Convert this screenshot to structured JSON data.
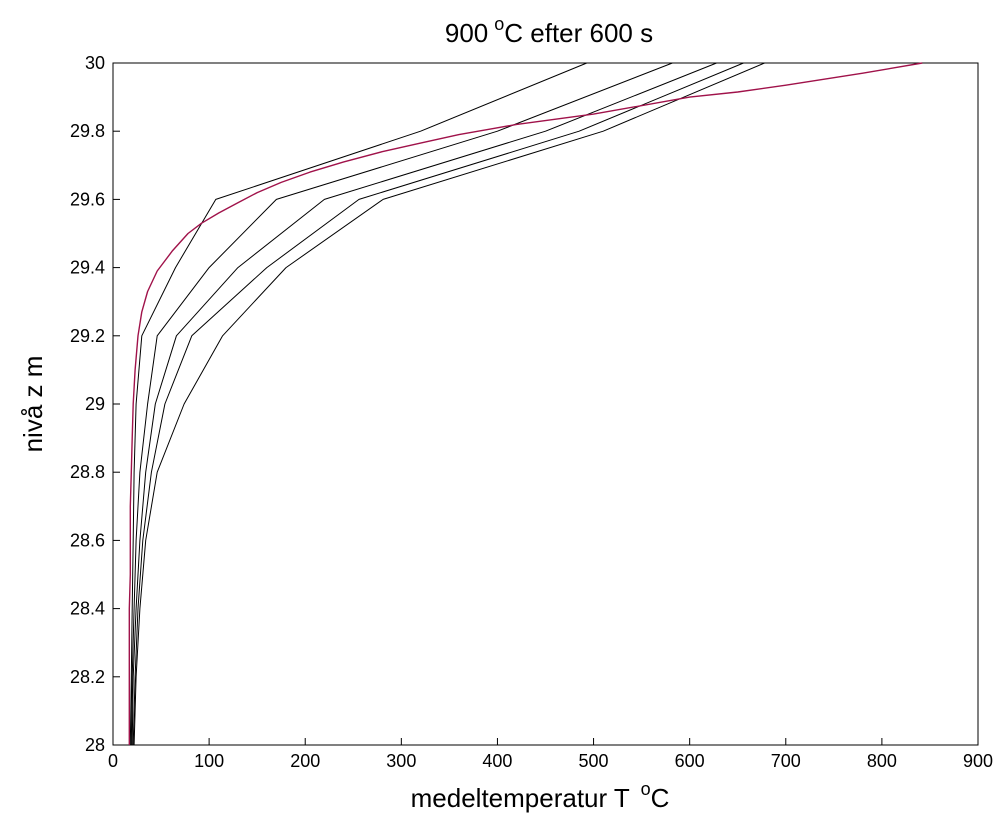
{
  "chart_data": {
    "type": "line",
    "title": {
      "value": "900",
      "superscript": "o",
      "rest": "C  efter 600 s"
    },
    "xlabel": {
      "text": "medeltemperatur T ",
      "superscript": "o",
      "rest": "C"
    },
    "ylabel": "nivå  z m",
    "xlim": [
      0,
      900
    ],
    "ylim": [
      28,
      30
    ],
    "xticks": [
      0,
      100,
      200,
      300,
      400,
      500,
      600,
      700,
      800,
      900
    ],
    "yticks": [
      28,
      28.2,
      28.4,
      28.6,
      28.8,
      29,
      29.2,
      29.4,
      29.6,
      29.8,
      30
    ],
    "grid": false,
    "colors": {
      "model": "#000000",
      "reference": "#a0124a"
    },
    "series": [
      {
        "style": "black",
        "points": [
          [
            18,
            28
          ],
          [
            19,
            28.2
          ],
          [
            20,
            28.4
          ],
          [
            21,
            28.6
          ],
          [
            22,
            28.8
          ],
          [
            24,
            29
          ],
          [
            30,
            29.2
          ],
          [
            65,
            29.4
          ],
          [
            107,
            29.6
          ],
          [
            320,
            29.8
          ],
          [
            493,
            30
          ]
        ]
      },
      {
        "style": "black",
        "points": [
          [
            19,
            28
          ],
          [
            20,
            28.2
          ],
          [
            22,
            28.4
          ],
          [
            24,
            28.6
          ],
          [
            28,
            28.8
          ],
          [
            36,
            29
          ],
          [
            46,
            29.2
          ],
          [
            100,
            29.4
          ],
          [
            170,
            29.6
          ],
          [
            400,
            29.8
          ],
          [
            582,
            30
          ]
        ]
      },
      {
        "style": "black",
        "points": [
          [
            20,
            28
          ],
          [
            21,
            28.2
          ],
          [
            24,
            28.4
          ],
          [
            28,
            28.6
          ],
          [
            34,
            28.8
          ],
          [
            44,
            29
          ],
          [
            66,
            29.2
          ],
          [
            130,
            29.4
          ],
          [
            220,
            29.6
          ],
          [
            450,
            29.8
          ],
          [
            628,
            30
          ]
        ]
      },
      {
        "style": "black",
        "points": [
          [
            21,
            28
          ],
          [
            23,
            28.2
          ],
          [
            26,
            28.4
          ],
          [
            31,
            28.6
          ],
          [
            40,
            28.8
          ],
          [
            54,
            29
          ],
          [
            82,
            29.2
          ],
          [
            160,
            29.4
          ],
          [
            256,
            29.6
          ],
          [
            485,
            29.8
          ],
          [
            656,
            30
          ]
        ]
      },
      {
        "style": "black",
        "points": [
          [
            22,
            28
          ],
          [
            24,
            28.2
          ],
          [
            28,
            28.4
          ],
          [
            34,
            28.6
          ],
          [
            46,
            28.8
          ],
          [
            74,
            29
          ],
          [
            114,
            29.2
          ],
          [
            180,
            29.4
          ],
          [
            281,
            29.6
          ],
          [
            510,
            29.8
          ],
          [
            678,
            30
          ]
        ]
      },
      {
        "style": "reference",
        "points": [
          [
            17,
            28
          ],
          [
            17,
            28.4
          ],
          [
            18,
            28.5
          ],
          [
            18,
            28.7
          ],
          [
            19,
            28.8
          ],
          [
            20,
            28.9
          ],
          [
            21,
            29
          ],
          [
            23,
            29.1
          ],
          [
            26,
            29.2
          ],
          [
            30,
            29.27
          ],
          [
            36,
            29.33
          ],
          [
            46,
            29.39
          ],
          [
            62,
            29.45
          ],
          [
            78,
            29.5
          ],
          [
            92,
            29.53
          ],
          [
            110,
            29.56
          ],
          [
            130,
            29.59
          ],
          [
            150,
            29.62
          ],
          [
            175,
            29.65
          ],
          [
            205,
            29.68
          ],
          [
            240,
            29.71
          ],
          [
            280,
            29.74
          ],
          [
            320,
            29.765
          ],
          [
            360,
            29.79
          ],
          [
            420,
            29.82
          ],
          [
            500,
            29.85
          ],
          [
            600,
            29.9
          ],
          [
            650,
            29.915
          ],
          [
            700,
            29.935
          ],
          [
            780,
            29.97
          ],
          [
            842,
            30
          ]
        ]
      }
    ]
  }
}
